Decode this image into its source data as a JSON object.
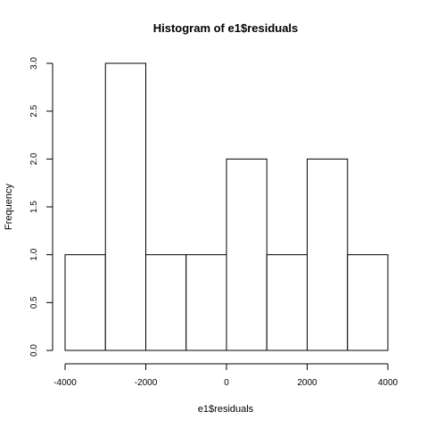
{
  "chart_data": {
    "type": "bar",
    "title": "Histogram of e1$residuals",
    "xlabel": "e1$residuals",
    "ylabel": "Frequency",
    "bins": [
      {
        "start": -4000,
        "end": -3000,
        "count": 1
      },
      {
        "start": -3000,
        "end": -2000,
        "count": 3
      },
      {
        "start": -2000,
        "end": -1000,
        "count": 1
      },
      {
        "start": -1000,
        "end": 0,
        "count": 1
      },
      {
        "start": 0,
        "end": 1000,
        "count": 2
      },
      {
        "start": 1000,
        "end": 2000,
        "count": 1
      },
      {
        "start": 2000,
        "end": 3000,
        "count": 2
      },
      {
        "start": 3000,
        "end": 4000,
        "count": 1
      }
    ],
    "xlim": [
      -4000,
      4000
    ],
    "ylim": [
      0,
      3
    ],
    "x_ticks": [
      "-4000",
      "-2000",
      "0",
      "2000",
      "4000"
    ],
    "y_ticks": [
      "0.0",
      "0.5",
      "1.0",
      "1.5",
      "2.0",
      "2.5",
      "3.0"
    ],
    "grid": false,
    "bar_fill": "#ffffff",
    "bar_stroke": "#000000"
  }
}
